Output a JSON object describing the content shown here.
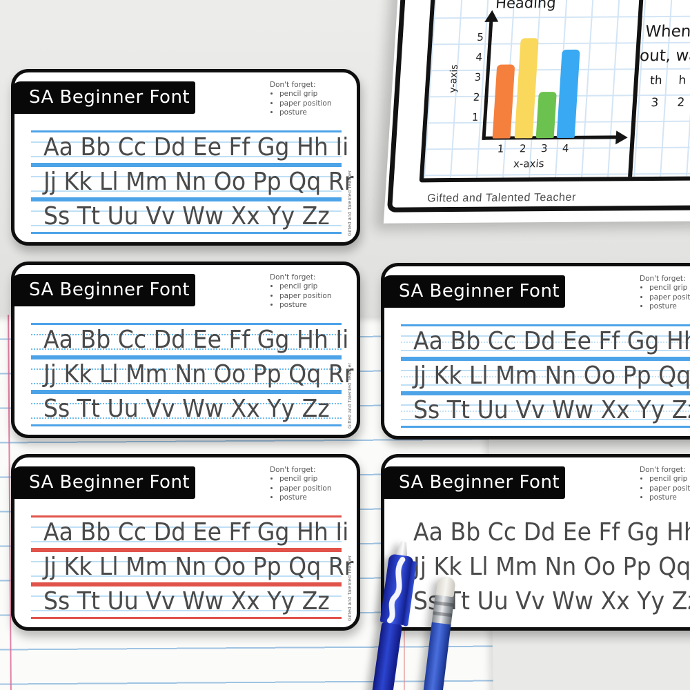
{
  "cards": {
    "title": "SA Beginner Font",
    "reminder": {
      "heading": "Don't forget:",
      "items": [
        "pencil grip",
        "paper position",
        "posture"
      ]
    },
    "attribution": "Gifted and Talented Teacher",
    "alphabet_rows": [
      "Aa Bb Cc Dd Ee Ff Gg Hh Ii",
      "Jj Kk Ll Mm Nn Oo Pp Qq Rr",
      "Ss Tt Uu Vv Ww Xx Yy Zz"
    ]
  },
  "worksheet": {
    "attribution": "Gifted and Talented Teacher",
    "text_panel": {
      "line1": "When",
      "line2": "out, wa",
      "table_headers": [
        "th",
        "h"
      ],
      "table_values": [
        "3",
        "2"
      ]
    }
  },
  "chart_data": {
    "type": "bar",
    "title": "Heading",
    "xlabel": "x-axis",
    "ylabel": "y-axis",
    "categories": [
      "1",
      "2",
      "3",
      "4"
    ],
    "values": [
      3.7,
      5,
      2.3,
      4.4
    ],
    "yticks": [
      "5",
      "4",
      "3",
      "2",
      "1"
    ],
    "ylim": [
      0,
      5
    ],
    "grid": true,
    "bar_colors": [
      "#F5803E",
      "#FAD85C",
      "#6CC24E",
      "#38A9F2"
    ]
  },
  "colors": {
    "card_border": "#0e0e0e",
    "header_bg": "#080808",
    "blue_guide_line": "#4da3e8",
    "light_guide_line": "#bedff5",
    "red_guide_line": "#e0524a",
    "grid_line": "#d3e5f5",
    "notebook_line": "#9fc3e2",
    "notebook_margin": "#dd6a97",
    "pen_blue": "#2c45d0",
    "pencil_blue": "#4a6fdd"
  }
}
